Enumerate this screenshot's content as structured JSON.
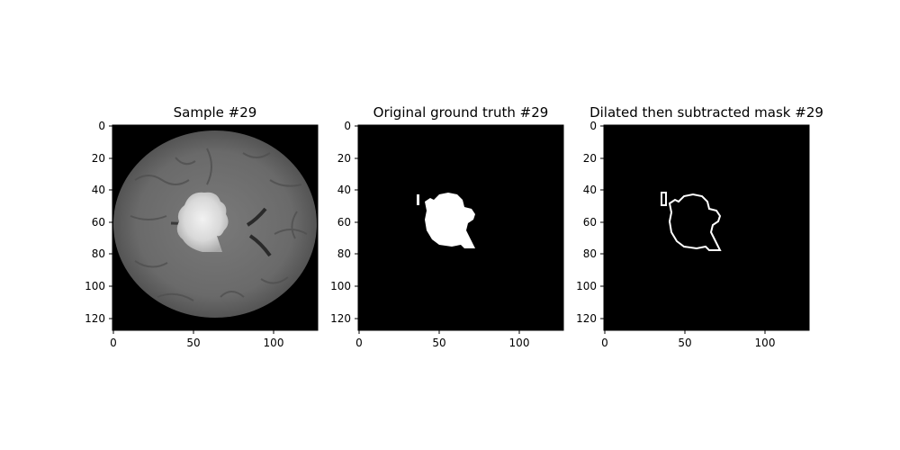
{
  "figure": {
    "panels": [
      {
        "title": "Sample #29",
        "content": "brain MRI slice with highlighted lesion"
      },
      {
        "title": "Original ground truth #29",
        "content": "binary mask of lesion"
      },
      {
        "title": "Dilated then subtracted mask #29",
        "content": "outline of lesion mask"
      }
    ],
    "axes": {
      "x_ticks": [
        "0",
        "50",
        "100"
      ],
      "y_ticks": [
        "0",
        "20",
        "40",
        "60",
        "80",
        "100",
        "120"
      ],
      "x_range": [
        0,
        128
      ],
      "y_range": [
        0,
        128
      ]
    }
  }
}
